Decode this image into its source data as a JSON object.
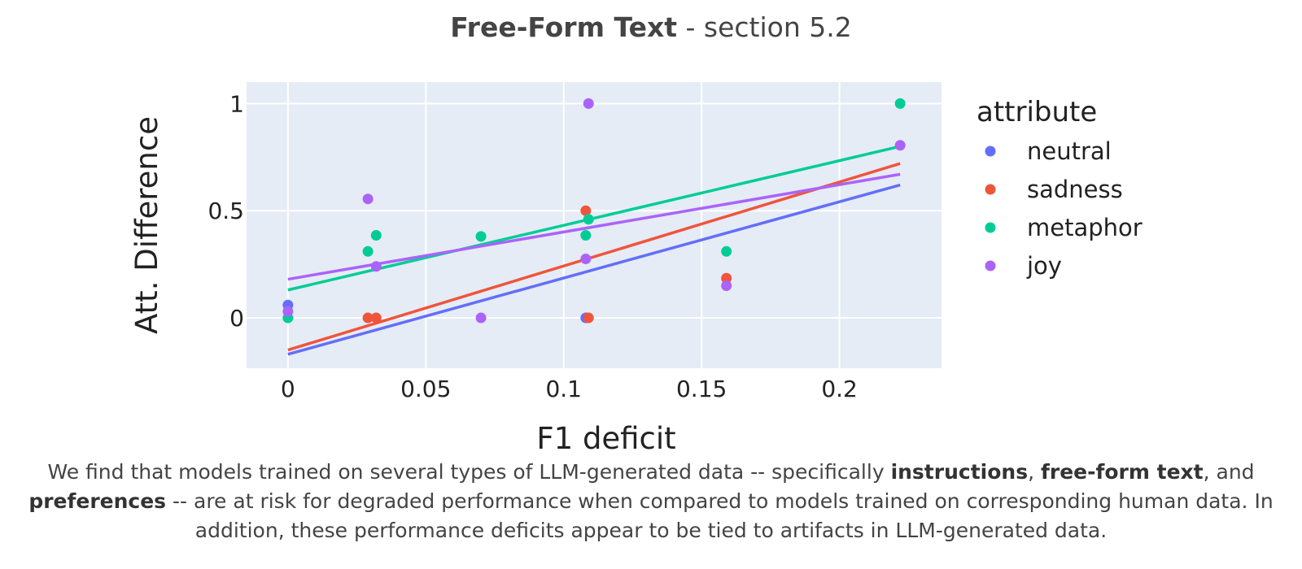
{
  "title": {
    "bold": "Free-Form Text",
    "rest": " - section 5.2"
  },
  "chart_data": {
    "type": "scatter",
    "xlabel": "F1 deficit",
    "ylabel": "Att. Difference",
    "xlim": [
      -0.015,
      0.237
    ],
    "ylim": [
      -0.235,
      1.1
    ],
    "x_ticks": [
      0,
      0.05,
      0.1,
      0.15,
      0.2
    ],
    "x_tick_labels": [
      "0",
      "0.05",
      "0.1",
      "0.15",
      "0.2"
    ],
    "y_ticks": [
      0,
      0.5,
      1
    ],
    "y_tick_labels": [
      "0",
      "0.5",
      "1"
    ],
    "grid": true,
    "plot_background": "#e5ecf6",
    "legend": {
      "title": "attribute",
      "placement": "right"
    },
    "series": [
      {
        "name": "neutral",
        "color": "#636efa",
        "points": [
          {
            "x": 0,
            "y": 0.06
          },
          {
            "x": 0.108,
            "y": 0
          }
        ],
        "trendline": {
          "x": [
            0,
            0.222
          ],
          "y": [
            -0.17,
            0.62
          ]
        }
      },
      {
        "name": "sadness",
        "color": "#ef553b",
        "points": [
          {
            "x": 0.029,
            "y": 0
          },
          {
            "x": 0.032,
            "y": 0
          },
          {
            "x": 0.108,
            "y": 0.5
          },
          {
            "x": 0.109,
            "y": 0
          },
          {
            "x": 0.159,
            "y": 0.185
          }
        ],
        "trendline": {
          "x": [
            0,
            0.222
          ],
          "y": [
            -0.15,
            0.72
          ]
        }
      },
      {
        "name": "metaphor",
        "color": "#00cc96",
        "points": [
          {
            "x": 0,
            "y": 0
          },
          {
            "x": 0.029,
            "y": 0.31
          },
          {
            "x": 0.032,
            "y": 0.385
          },
          {
            "x": 0.07,
            "y": 0.38
          },
          {
            "x": 0.108,
            "y": 0.385
          },
          {
            "x": 0.109,
            "y": 0.46
          },
          {
            "x": 0.159,
            "y": 0.31
          },
          {
            "x": 0.222,
            "y": 1
          }
        ],
        "trendline": {
          "x": [
            0,
            0.222
          ],
          "y": [
            0.13,
            0.8
          ]
        }
      },
      {
        "name": "joy",
        "color": "#ab63fa",
        "points": [
          {
            "x": 0,
            "y": 0.03
          },
          {
            "x": 0.029,
            "y": 0.555
          },
          {
            "x": 0.032,
            "y": 0.24
          },
          {
            "x": 0.07,
            "y": 0
          },
          {
            "x": 0.108,
            "y": 0.275
          },
          {
            "x": 0.109,
            "y": 1
          },
          {
            "x": 0.159,
            "y": 0.15
          },
          {
            "x": 0.222,
            "y": 0.805
          }
        ],
        "trendline": {
          "x": [
            0,
            0.222
          ],
          "y": [
            0.18,
            0.67
          ]
        }
      }
    ]
  },
  "caption": {
    "part1": "We find that models trained on several types of LLM-generated data -- specifically ",
    "bold1": "instructions",
    "part2": ", ",
    "bold2": "free-form text",
    "part3": ", and ",
    "bold3": "preferences",
    "part4": " -- are at risk for degraded performance when compared to models trained on corresponding human data. In addition, these performance deficits appear to be tied to artifacts in LLM-generated data."
  }
}
